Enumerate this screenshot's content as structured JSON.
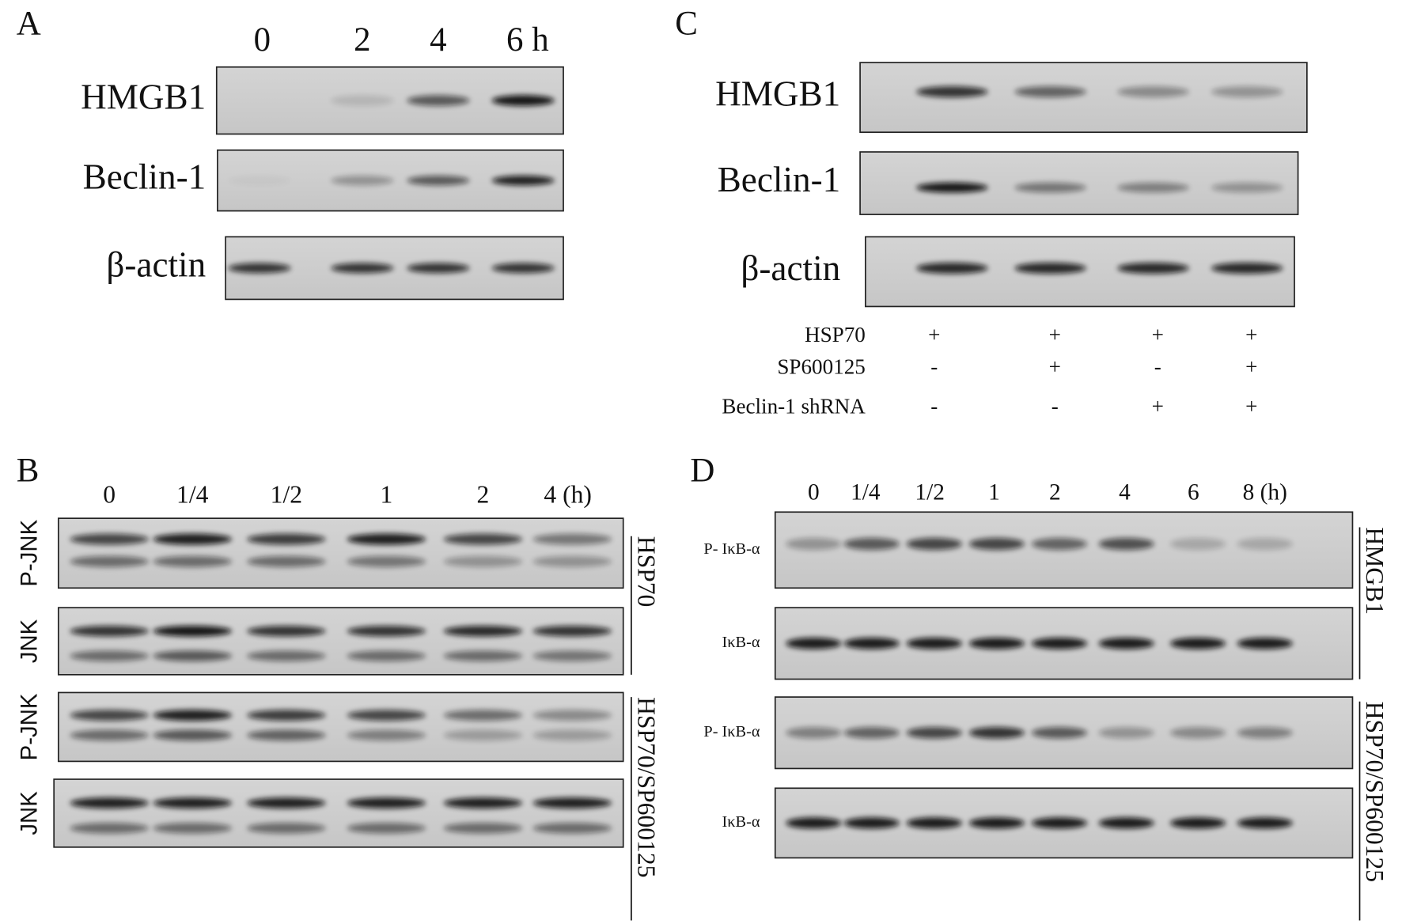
{
  "panels": [
    {
      "label": "A",
      "lanes": [
        "0",
        "2",
        "4",
        "6 h"
      ],
      "rows": [
        "HMGB1",
        "Beclin-1",
        "β-actin"
      ]
    },
    {
      "label": "B",
      "lanes": [
        "0",
        "1/4",
        "1/2",
        "1",
        "2",
        "4 (h)"
      ],
      "rows": [
        "P-JNK",
        "JNK",
        "P-JNK",
        "JNK"
      ],
      "side_labels": [
        "HSP70",
        "HSP70/SP600125"
      ]
    },
    {
      "label": "C",
      "rows": [
        "HMGB1",
        "Beclin-1",
        "β-actin"
      ],
      "treatments": [
        {
          "name": "HSP70",
          "signs": [
            "+",
            "+",
            "+",
            "+"
          ]
        },
        {
          "name": "SP600125",
          "signs": [
            "-",
            "+",
            "-",
            "+"
          ]
        },
        {
          "name": "Beclin-1 shRNA",
          "signs": [
            "-",
            "-",
            "+",
            "+"
          ]
        }
      ]
    },
    {
      "label": "D",
      "lanes": [
        "0",
        "1/4",
        "1/2",
        "1",
        "2",
        "4",
        "6",
        "8 (h)"
      ],
      "rows": [
        "P- IκB-α",
        "IκB-α",
        "P- IκB-α",
        "IκB-α"
      ],
      "side_labels": [
        "HMGB1",
        "HSP70/SP600125"
      ]
    }
  ]
}
